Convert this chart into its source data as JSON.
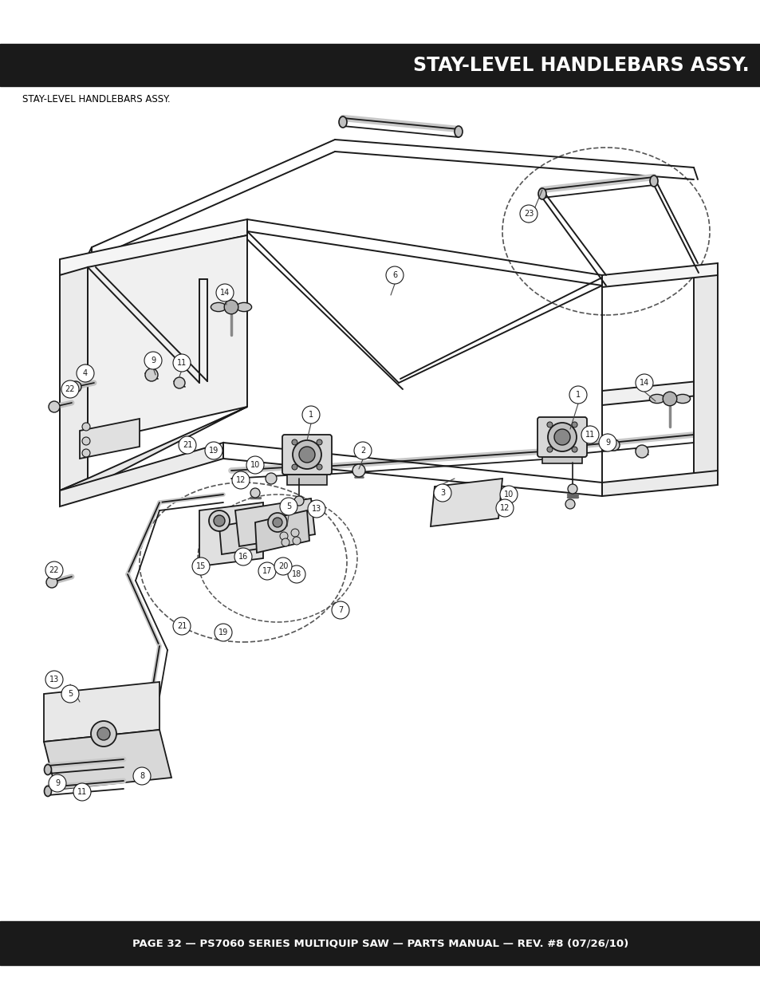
{
  "title": "STAY-LEVEL HANDLEBARS ASSY.",
  "subtitle": "STAY-LEVEL HANDLEBARS ASSY.",
  "footer": "PAGE 32 — PS7060 SERIES MULTIQUIP SAW — PARTS MANUAL — REV. #8 (07/26/10)",
  "header_bg": "#1a1a1a",
  "footer_bg": "#1a1a1a",
  "header_text_color": "#ffffff",
  "footer_text_color": "#ffffff",
  "subtitle_color": "#000000",
  "bg_color": "#ffffff",
  "title_fontsize": 17,
  "subtitle_fontsize": 8.5,
  "footer_fontsize": 9.5,
  "fig_width": 9.54,
  "fig_height": 12.35
}
